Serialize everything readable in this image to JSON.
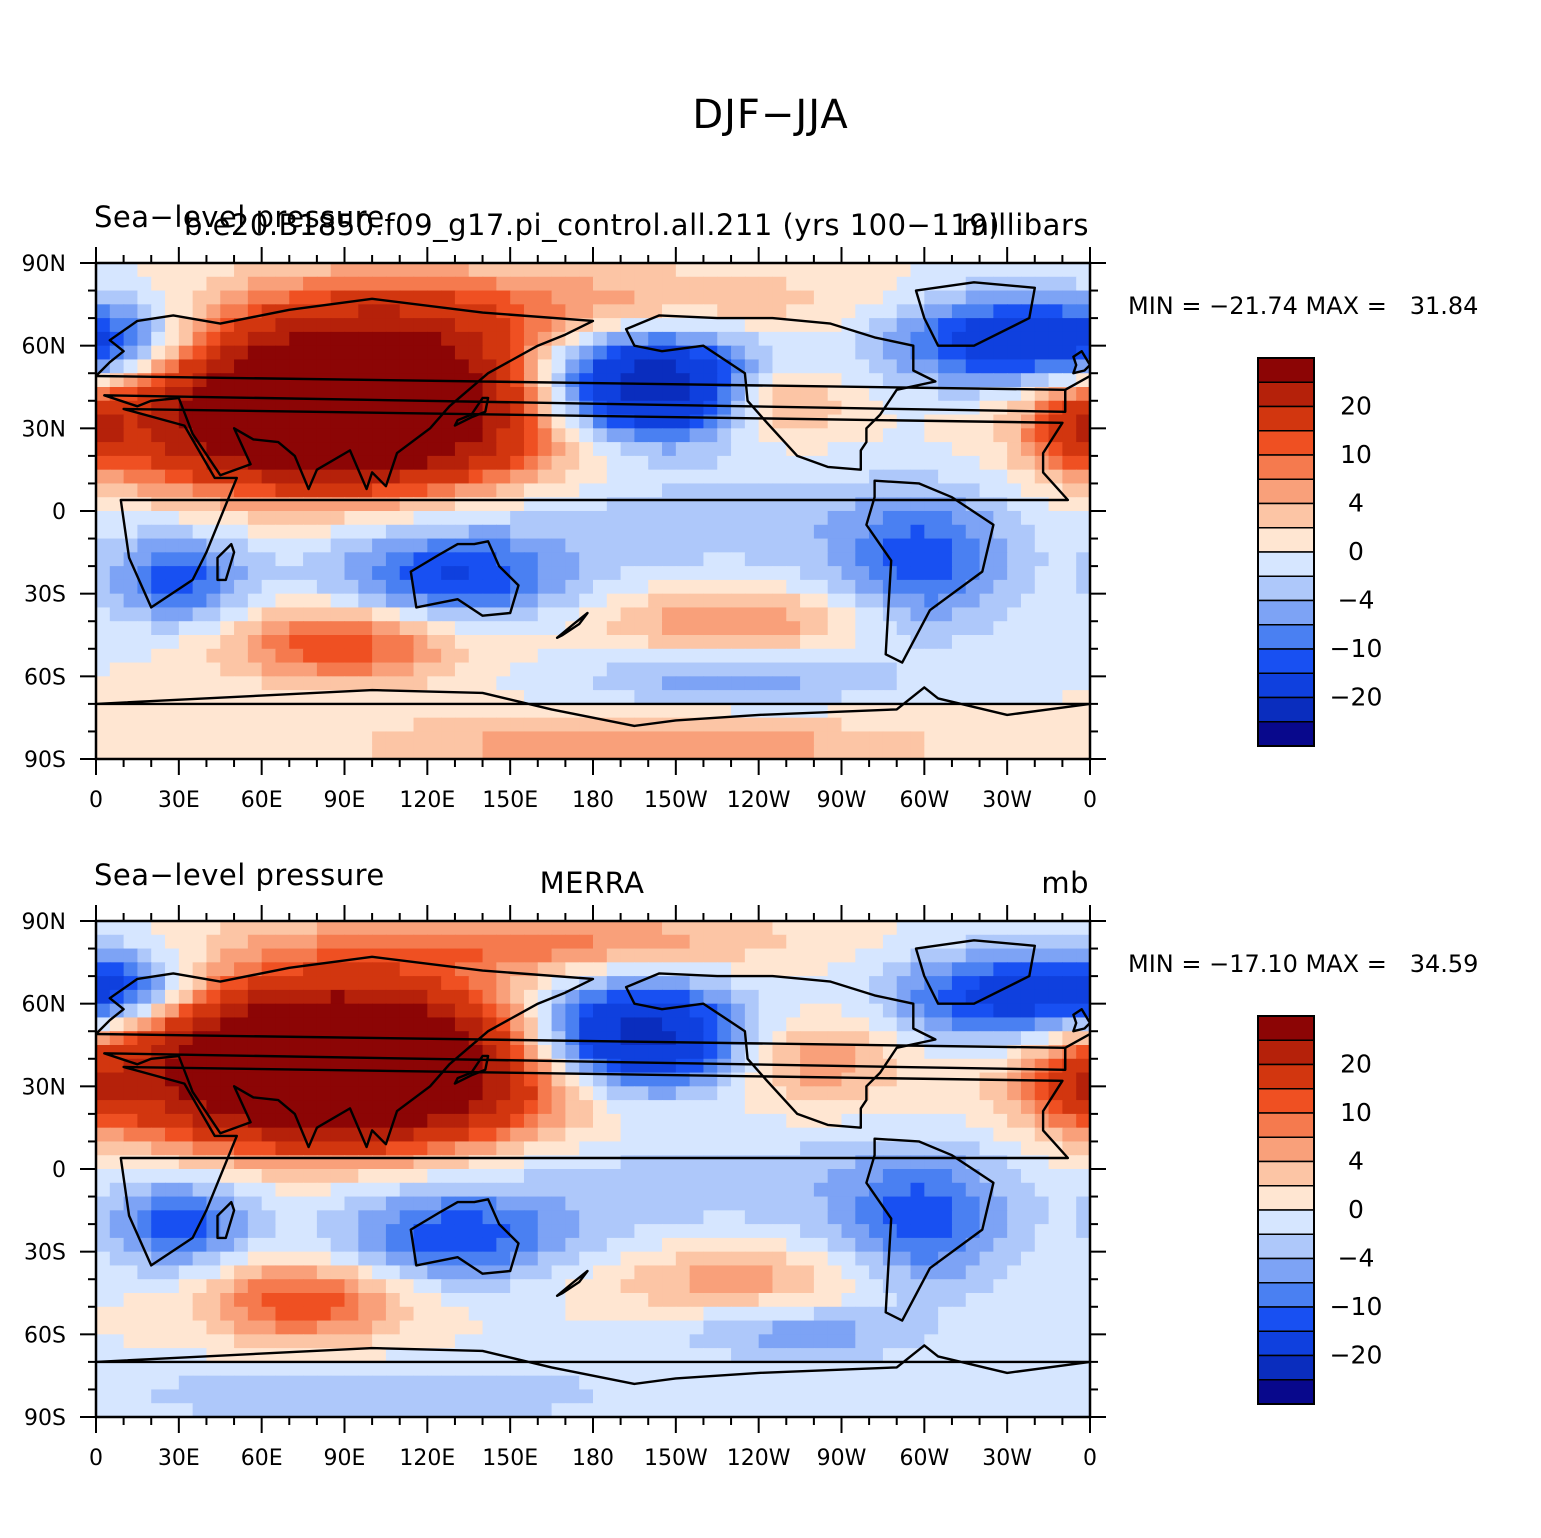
{
  "figure_title": "DJF−JJA",
  "colorbar": {
    "colors": [
      "#08088c",
      "#0a2dbe",
      "#0f40de",
      "#1850f2",
      "#4a80f2",
      "#7da3f5",
      "#aec8fa",
      "#d6e6ff",
      "#ffe6d2",
      "#fcc5a5",
      "#f9a07a",
      "#f57a4e",
      "#ef5022",
      "#d2360f",
      "#b5210a",
      "#8c0505"
    ],
    "labels": [
      "−20",
      "−10",
      "−4",
      "0",
      "4",
      "10",
      "20"
    ]
  },
  "panels": [
    {
      "left_label": "Sea−level pressure",
      "center_label": "b.e20.B1850.f09_g17.pi_control.all.211 (yrs 100−119)",
      "right_label": "millibars",
      "min_max": "MIN = −21.74 MAX =   31.84"
    },
    {
      "left_label": "Sea−level pressure",
      "center_label": "MERRA",
      "right_label": "mb",
      "min_max": "MIN = −17.10 MAX =   34.59"
    }
  ],
  "chart_data": {
    "type": "heatmap",
    "title": "DJF−JJA",
    "projection": "cylindrical equidistant, 0 to 360 longitude",
    "x_tick_labels": [
      "0",
      "30E",
      "60E",
      "90E",
      "120E",
      "150E",
      "180",
      "150W",
      "120W",
      "90W",
      "60W",
      "30W",
      "0"
    ],
    "y_tick_labels": [
      "90N",
      "60N",
      "30N",
      "0",
      "30S",
      "60S",
      "90S"
    ],
    "xlim": [
      0,
      360
    ],
    "ylim": [
      -90,
      90
    ],
    "contour_levels": [
      -20,
      -15,
      -10,
      -8,
      -6,
      -4,
      -2,
      0,
      2,
      4,
      6,
      8,
      10,
      15,
      20
    ],
    "colorbar_labels": [
      "20",
      "10",
      "4",
      "0",
      "−4",
      "−10",
      "−20"
    ],
    "panels": [
      {
        "name": "b.e20.B1850.f09_g17.pi_control.all.211 (yrs 100−119)",
        "variable": "Sea−level pressure",
        "units": "millibars",
        "min": -21.74,
        "max": 31.84,
        "features": [
          {
            "lon": 100,
            "lat": 45,
            "value": 30,
            "dlon": 40,
            "dlat": 20
          },
          {
            "lon": 60,
            "lat": 35,
            "value": 14,
            "dlon": 45,
            "dlat": 18
          },
          {
            "lon": 95,
            "lat": 25,
            "value": 8,
            "dlon": 55,
            "dlat": 12
          },
          {
            "lon": 200,
            "lat": 45,
            "value": -20,
            "dlon": 30,
            "dlat": 14
          },
          {
            "lon": 330,
            "lat": 62,
            "value": -13,
            "dlon": 30,
            "dlat": 12
          },
          {
            "lon": 10,
            "lat": 60,
            "value": -7,
            "dlon": 20,
            "dlat": 10
          },
          {
            "lon": 245,
            "lat": 40,
            "value": 8,
            "dlon": 18,
            "dlat": 10
          },
          {
            "lon": 355,
            "lat": 30,
            "value": 9,
            "dlon": 12,
            "dlat": 10
          },
          {
            "lon": 180,
            "lat": 75,
            "value": 5,
            "dlon": 70,
            "dlat": 10
          },
          {
            "lon": 30,
            "lat": -25,
            "value": -9,
            "dlon": 18,
            "dlat": 12
          },
          {
            "lon": 128,
            "lat": -25,
            "value": -10,
            "dlon": 30,
            "dlat": 12
          },
          {
            "lon": 300,
            "lat": -20,
            "value": -8,
            "dlon": 22,
            "dlat": 18
          },
          {
            "lon": 220,
            "lat": -5,
            "value": -3,
            "dlon": 80,
            "dlat": 14
          },
          {
            "lon": 90,
            "lat": -48,
            "value": 10,
            "dlon": 30,
            "dlat": 10
          },
          {
            "lon": 230,
            "lat": -40,
            "value": 6,
            "dlon": 35,
            "dlat": 8
          },
          {
            "lon": 230,
            "lat": -62,
            "value": -5,
            "dlon": 40,
            "dlat": 7
          },
          {
            "lon": 200,
            "lat": -85,
            "value": 6,
            "dlon": 70,
            "dlat": 8
          }
        ]
      },
      {
        "name": "MERRA",
        "variable": "Sea−level pressure",
        "units": "mb",
        "min": -17.1,
        "max": 34.59,
        "features": [
          {
            "lon": 95,
            "lat": 40,
            "value": 30,
            "dlon": 40,
            "dlat": 18
          },
          {
            "lon": 60,
            "lat": 40,
            "value": 14,
            "dlon": 50,
            "dlat": 20
          },
          {
            "lon": 95,
            "lat": 25,
            "value": 8,
            "dlon": 55,
            "dlat": 12
          },
          {
            "lon": 195,
            "lat": 48,
            "value": -18,
            "dlon": 28,
            "dlat": 14
          },
          {
            "lon": 330,
            "lat": 62,
            "value": -12,
            "dlon": 30,
            "dlat": 12
          },
          {
            "lon": 10,
            "lat": 65,
            "value": -10,
            "dlon": 20,
            "dlat": 10
          },
          {
            "lon": 260,
            "lat": 40,
            "value": 6,
            "dlon": 22,
            "dlat": 12
          },
          {
            "lon": 355,
            "lat": 30,
            "value": 8,
            "dlon": 12,
            "dlat": 10
          },
          {
            "lon": 160,
            "lat": 82,
            "value": 7,
            "dlon": 60,
            "dlat": 8
          },
          {
            "lon": 30,
            "lat": -20,
            "value": -9,
            "dlon": 18,
            "dlat": 12
          },
          {
            "lon": 130,
            "lat": -25,
            "value": -9,
            "dlon": 30,
            "dlat": 12
          },
          {
            "lon": 300,
            "lat": -20,
            "value": -8,
            "dlon": 22,
            "dlat": 18
          },
          {
            "lon": 220,
            "lat": -5,
            "value": -3,
            "dlon": 80,
            "dlat": 14
          },
          {
            "lon": 75,
            "lat": -48,
            "value": 10,
            "dlon": 25,
            "dlat": 10
          },
          {
            "lon": 230,
            "lat": -40,
            "value": 5,
            "dlon": 35,
            "dlat": 8
          },
          {
            "lon": 255,
            "lat": -60,
            "value": -5,
            "dlon": 30,
            "dlat": 7
          },
          {
            "lon": 100,
            "lat": -82,
            "value": -4,
            "dlon": 70,
            "dlat": 8
          }
        ]
      }
    ]
  }
}
